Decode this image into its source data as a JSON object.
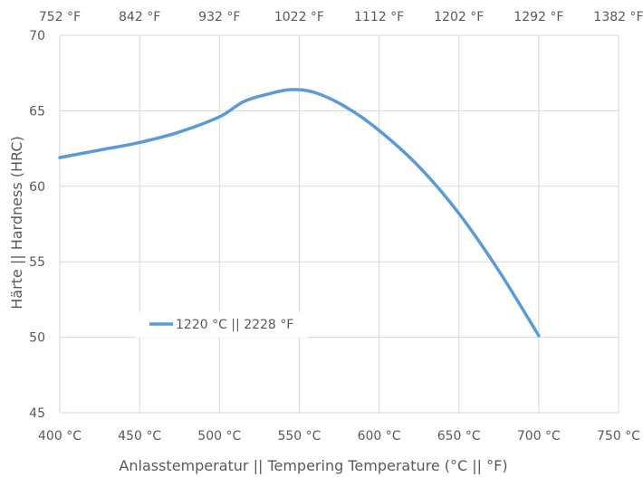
{
  "chart_data": {
    "type": "line",
    "xlabel": "Anlasstemperatur || Tempering Temperature (°C || °F)",
    "ylabel": "Härte || Hardness (HRC)",
    "xlim": [
      400,
      750
    ],
    "ylim": [
      45,
      70
    ],
    "x_ticks": [
      "400 °C",
      "450 °C",
      "500 °C",
      "550 °C",
      "600 °C",
      "650 °C",
      "700 °C",
      "750 °C"
    ],
    "x2_ticks": [
      "752 °F",
      "842 °F",
      "932 °F",
      "1022 °F",
      "1112 °F",
      "1202 °F",
      "1292 °F",
      "1382 °F"
    ],
    "y_ticks": [
      "45",
      "50",
      "55",
      "60",
      "65",
      "70"
    ],
    "grid": true,
    "legend_placement": "lower-left",
    "series": [
      {
        "name": "1220 °C || 2228 °F",
        "color": "#5b9bd5",
        "x": [
          400,
          425,
          450,
          475,
          500,
          515,
          530,
          545,
          560,
          580,
          600,
          625,
          650,
          675,
          700
        ],
        "y": [
          61.9,
          62.4,
          62.9,
          63.6,
          64.6,
          65.6,
          66.1,
          66.4,
          66.2,
          65.2,
          63.7,
          61.3,
          58.2,
          54.4,
          50.1
        ]
      }
    ]
  }
}
